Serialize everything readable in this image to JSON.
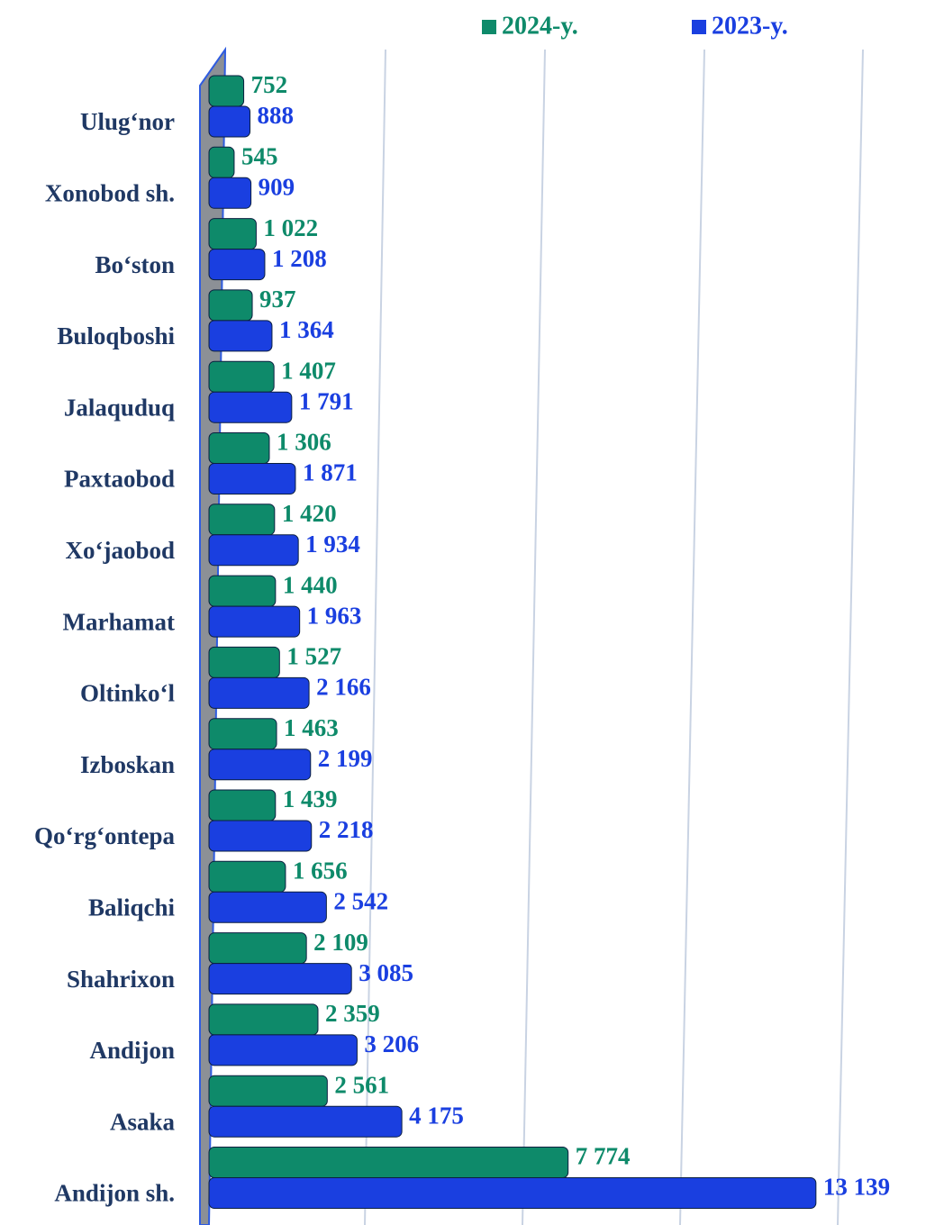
{
  "chart_data": {
    "type": "bar",
    "orientation": "horizontal",
    "categories": [
      "Ulug‘nor",
      "Xonobod sh.",
      "Bo‘ston",
      "Buloqboshi",
      "Jalaquduq",
      "Paxtaobod",
      "Xo‘jaobod",
      "Marhamat",
      "Oltinko‘l",
      "Izboskan",
      "Qo‘rg‘ontepa",
      "Baliqchi",
      "Shahrixon",
      "Andijon",
      "Asaka",
      "Andijon sh."
    ],
    "series": [
      {
        "name": "2024-y.",
        "color": "#0e8a6a",
        "values": [
          752,
          545,
          1022,
          937,
          1407,
          1306,
          1420,
          1440,
          1527,
          1463,
          1439,
          1656,
          2109,
          2359,
          2561,
          7774
        ],
        "value_labels": [
          "752",
          "545",
          "1 022",
          "937",
          "1 407",
          "1 306",
          "1 420",
          "1 440",
          "1 527",
          "1 463",
          "1 439",
          "1 656",
          "2 109",
          "2 359",
          "2 561",
          "7 774"
        ]
      },
      {
        "name": "2023-y.",
        "color": "#1a3fe0",
        "values": [
          888,
          909,
          1208,
          1364,
          1791,
          1871,
          1934,
          1963,
          2166,
          2199,
          2218,
          2542,
          3085,
          3206,
          4175,
          13139
        ],
        "value_labels": [
          "888",
          "909",
          "1 208",
          "1 364",
          "1 791",
          "1 871",
          "1 934",
          "1 963",
          "2 166",
          "2 199",
          "2 218",
          "2 542",
          "3 085",
          "3 206",
          "4 175",
          "13 139"
        ]
      }
    ],
    "xlim": [
      0,
      14000
    ],
    "legend": "top"
  }
}
